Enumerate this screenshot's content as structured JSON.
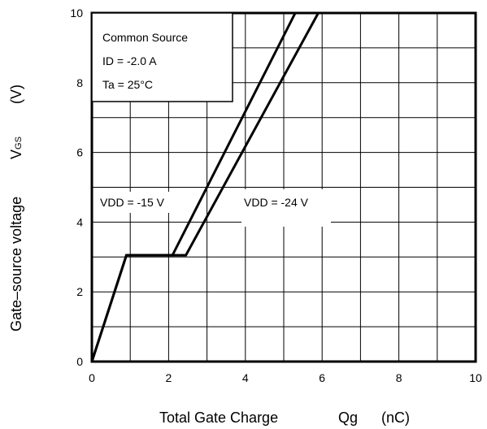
{
  "chart_data": {
    "type": "line",
    "xlabel": {
      "text": "Total Gate Charge",
      "symbol": "Qg",
      "unit": "(nC)"
    },
    "ylabel": {
      "text": "Gate–source voltage",
      "symbol": "V",
      "symbol_subscript": "GS",
      "unit": "(V)"
    },
    "xlim": [
      0,
      10
    ],
    "ylim": [
      0,
      10
    ],
    "xticks": [
      "0",
      "2",
      "4",
      "6",
      "8",
      "10"
    ],
    "yticks": [
      "0",
      "2",
      "4",
      "6",
      "8",
      "10"
    ],
    "grid": true,
    "conditions": [
      "Common Source",
      "ID = -2.0 A",
      "Ta = 25°C"
    ],
    "series": [
      {
        "name": "VDD = -15 V",
        "x": [
          0,
          0.9,
          2.1,
          5.3
        ],
        "y": [
          0,
          3.05,
          3.05,
          10
        ]
      },
      {
        "name": "VDD = -24 V",
        "x": [
          0,
          0.9,
          2.45,
          5.9
        ],
        "y": [
          0,
          3.05,
          3.05,
          10
        ]
      }
    ],
    "line_color": "#000000"
  }
}
